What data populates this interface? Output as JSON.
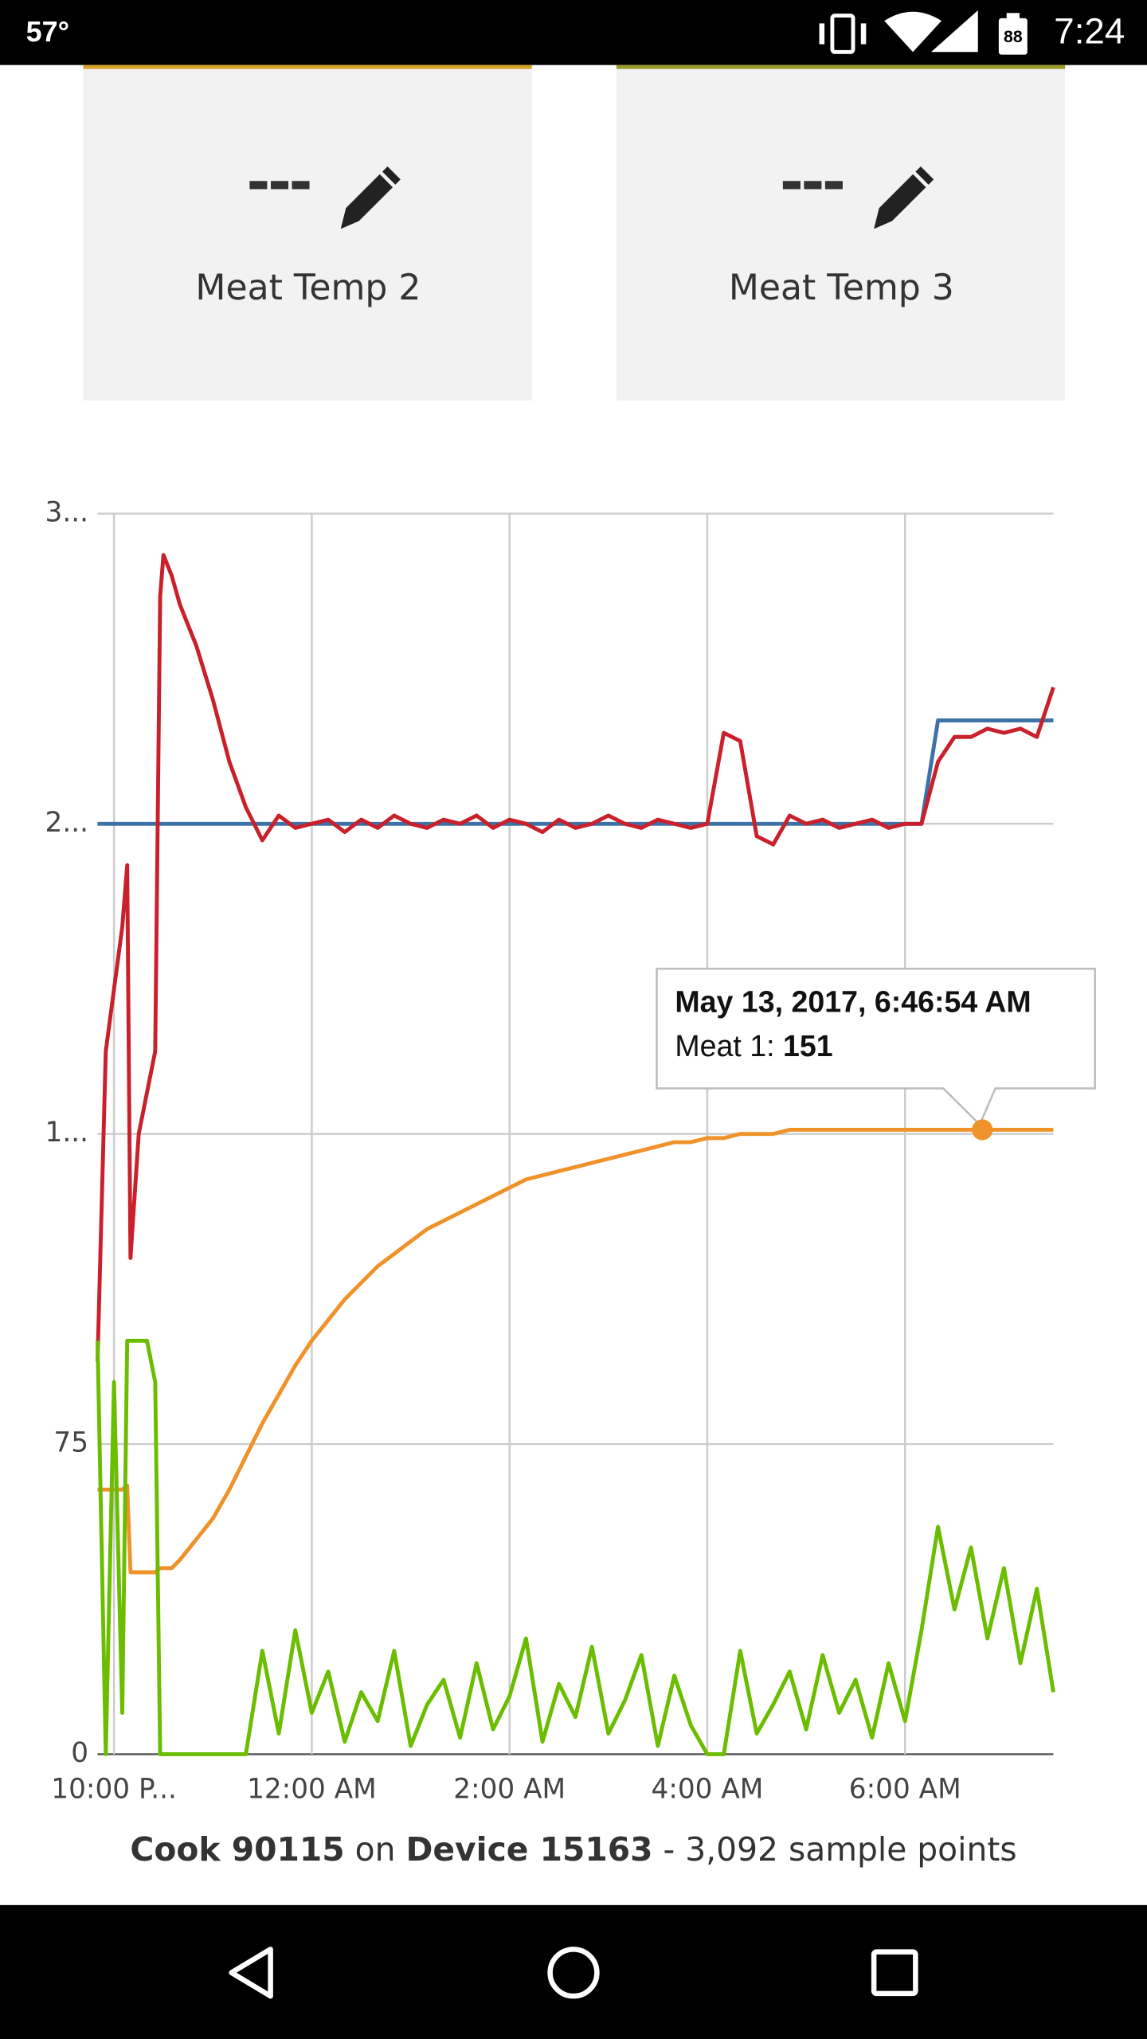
{
  "status_bar": {
    "temperature": "57°",
    "battery": "88",
    "time": "7:24"
  },
  "cards": [
    {
      "value": "---",
      "label": "Meat Temp 2"
    },
    {
      "value": "---",
      "label": "Meat Temp 3"
    }
  ],
  "chart_data": {
    "type": "line",
    "x": [
      "2017-05-12T21:50:00",
      "2017-05-12T21:55:00",
      "2017-05-12T22:00:00",
      "2017-05-12T22:05:00",
      "2017-05-12T22:08:00",
      "2017-05-12T22:10:00",
      "2017-05-12T22:15:00",
      "2017-05-12T22:20:00",
      "2017-05-12T22:25:00",
      "2017-05-12T22:28:00",
      "2017-05-12T22:30:00",
      "2017-05-12T22:35:00",
      "2017-05-12T22:40:00",
      "2017-05-12T22:50:00",
      "2017-05-12T23:00:00",
      "2017-05-12T23:10:00",
      "2017-05-12T23:20:00",
      "2017-05-12T23:30:00",
      "2017-05-12T23:40:00",
      "2017-05-12T23:50:00",
      "2017-05-13T00:00:00",
      "2017-05-13T00:10:00",
      "2017-05-13T00:20:00",
      "2017-05-13T00:30:00",
      "2017-05-13T00:40:00",
      "2017-05-13T00:50:00",
      "2017-05-13T01:00:00",
      "2017-05-13T01:10:00",
      "2017-05-13T01:20:00",
      "2017-05-13T01:30:00",
      "2017-05-13T01:40:00",
      "2017-05-13T01:50:00",
      "2017-05-13T02:00:00",
      "2017-05-13T02:10:00",
      "2017-05-13T02:20:00",
      "2017-05-13T02:30:00",
      "2017-05-13T02:40:00",
      "2017-05-13T02:50:00",
      "2017-05-13T03:00:00",
      "2017-05-13T03:10:00",
      "2017-05-13T03:20:00",
      "2017-05-13T03:30:00",
      "2017-05-13T03:40:00",
      "2017-05-13T03:50:00",
      "2017-05-13T04:00:00",
      "2017-05-13T04:10:00",
      "2017-05-13T04:20:00",
      "2017-05-13T04:30:00",
      "2017-05-13T04:40:00",
      "2017-05-13T04:50:00",
      "2017-05-13T05:00:00",
      "2017-05-13T05:10:00",
      "2017-05-13T05:20:00",
      "2017-05-13T05:30:00",
      "2017-05-13T05:40:00",
      "2017-05-13T05:50:00",
      "2017-05-13T06:00:00",
      "2017-05-13T06:10:00",
      "2017-05-13T06:20:00",
      "2017-05-13T06:30:00",
      "2017-05-13T06:40:00",
      "2017-05-13T06:50:00",
      "2017-05-13T07:00:00",
      "2017-05-13T07:10:00",
      "2017-05-13T07:20:00",
      "2017-05-13T07:30:00"
    ],
    "series": [
      {
        "color": "#3d72a8",
        "values": [
          225,
          225,
          225,
          225,
          225,
          225,
          225,
          225,
          225,
          225,
          225,
          225,
          225,
          225,
          225,
          225,
          225,
          225,
          225,
          225,
          225,
          225,
          225,
          225,
          225,
          225,
          225,
          225,
          225,
          225,
          225,
          225,
          225,
          225,
          225,
          225,
          225,
          225,
          225,
          225,
          225,
          225,
          225,
          225,
          225,
          225,
          225,
          225,
          225,
          225,
          225,
          225,
          225,
          225,
          225,
          225,
          225,
          225,
          250,
          250,
          250,
          250,
          250,
          250,
          250,
          250
        ]
      },
      {
        "color": "#c9202b",
        "values": [
          95,
          170,
          185,
          200,
          215,
          120,
          150,
          160,
          170,
          280,
          290,
          285,
          278,
          268,
          255,
          240,
          229,
          221,
          227,
          224,
          225,
          226,
          223,
          226,
          224,
          227,
          225,
          224,
          226,
          225,
          227,
          224,
          226,
          225,
          223,
          226,
          224,
          225,
          227,
          225,
          224,
          226,
          225,
          224,
          225,
          247,
          245,
          222,
          220,
          227,
          225,
          226,
          224,
          225,
          226,
          224,
          225,
          225,
          240,
          246,
          246,
          248,
          247,
          248,
          246,
          258
        ]
      },
      {
        "color": "#f0922a",
        "values": [
          64,
          64,
          64,
          64,
          65,
          44,
          44,
          44,
          44,
          45,
          45,
          45,
          47,
          52,
          57,
          64,
          72,
          80,
          87,
          94,
          100,
          105,
          110,
          114,
          118,
          121,
          124,
          127,
          129,
          131,
          133,
          135,
          137,
          139,
          140,
          141,
          142,
          143,
          144,
          145,
          146,
          147,
          148,
          148,
          149,
          149,
          150,
          150,
          150,
          151,
          151,
          151,
          151,
          151,
          151,
          151,
          151,
          151,
          151,
          151,
          151,
          151,
          151,
          151,
          151,
          151
        ]
      },
      {
        "color": "#6bbd00",
        "values": [
          100,
          0,
          90,
          10,
          100,
          100,
          100,
          100,
          90,
          0,
          0,
          0,
          0,
          0,
          0,
          0,
          0,
          25,
          5,
          30,
          10,
          20,
          3,
          15,
          8,
          25,
          2,
          12,
          18,
          4,
          22,
          6,
          14,
          28,
          3,
          17,
          9,
          26,
          5,
          13,
          24,
          2,
          19,
          7,
          0,
          0,
          25,
          5,
          12,
          20,
          6,
          24,
          10,
          18,
          4,
          22,
          8,
          30,
          55,
          35,
          50,
          28,
          45,
          22,
          40,
          15
        ]
      }
    ],
    "xlim": [
      "2017-05-12T21:50:00",
      "2017-05-13T07:30:00"
    ],
    "xticks": [
      {
        "value": "2017-05-12T22:00:00",
        "label": "10:00 P..."
      },
      {
        "value": "2017-05-13T00:00:00",
        "label": "12:00 AM"
      },
      {
        "value": "2017-05-13T02:00:00",
        "label": "2:00 AM"
      },
      {
        "value": "2017-05-13T04:00:00",
        "label": "4:00 AM"
      },
      {
        "value": "2017-05-13T06:00:00",
        "label": "6:00 AM"
      }
    ],
    "ylim": [
      0,
      300
    ],
    "yticks": [
      0,
      75,
      {
        "value": 150,
        "label": "1..."
      },
      {
        "value": 225,
        "label": "2..."
      },
      {
        "value": 300,
        "label": "3..."
      }
    ],
    "grid": true,
    "tooltip": {
      "title": "May 13, 2017, 6:46:54 AM",
      "label": "Meat 1:",
      "value": 151,
      "x": "2017-05-13T06:46:54",
      "color": "#f0922a"
    }
  },
  "caption": {
    "cook": "Cook 90115",
    "on": "on",
    "device": "Device 15163",
    "rest": "- 3,092 sample points"
  }
}
